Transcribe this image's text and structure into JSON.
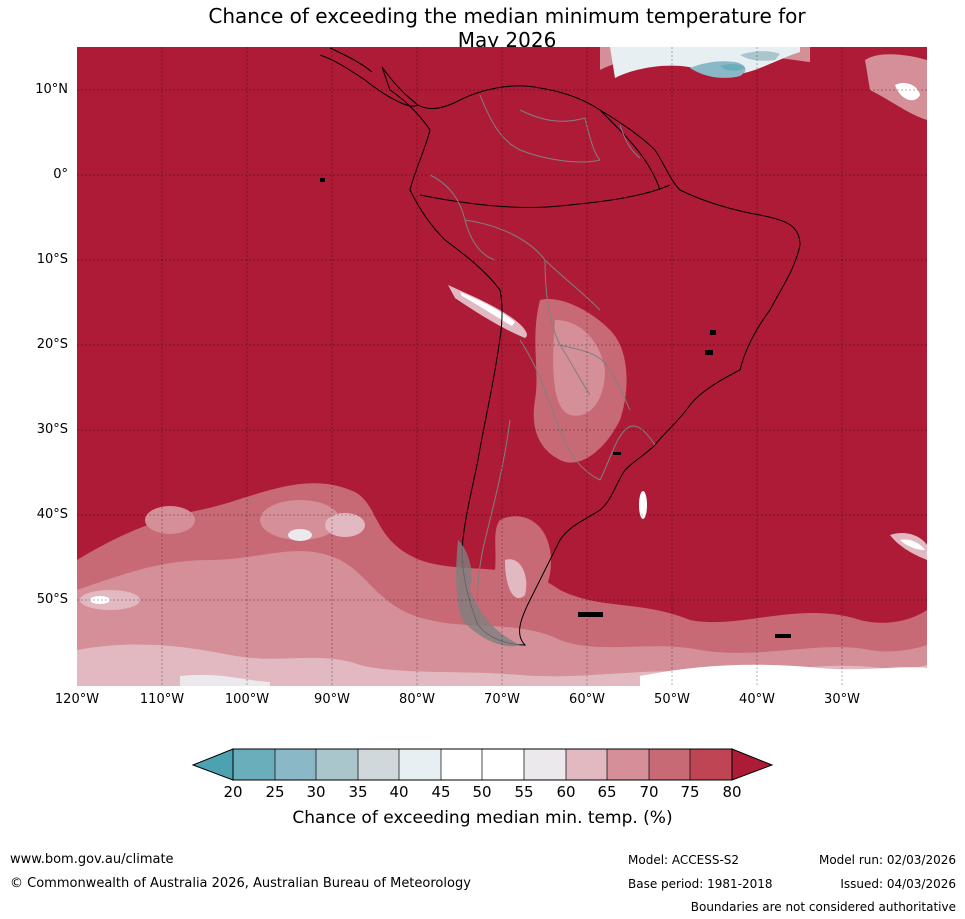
{
  "title": {
    "line1": "Chance of exceeding the median minimum temperature for",
    "line2": "May 2026"
  },
  "map": {
    "region": "South America",
    "lat_labels": [
      "10°N",
      "0°",
      "10°S",
      "20°S",
      "30°S",
      "40°S",
      "50°S"
    ],
    "lon_labels": [
      "120°W",
      "110°W",
      "100°W",
      "90°W",
      "80°W",
      "70°W",
      "60°W",
      "50°W",
      "40°W",
      "30°W"
    ],
    "colors": {
      "background": "#ae1b37",
      "coast": "#000000",
      "borders": "#808080",
      "gridlines": "#000000"
    }
  },
  "colorbar": {
    "ticks": [
      "20",
      "25",
      "30",
      "35",
      "40",
      "45",
      "50",
      "55",
      "60",
      "65",
      "70",
      "75",
      "80"
    ],
    "colors": [
      "#4ca2b0",
      "#6aaebc",
      "#8ab8c6",
      "#a9c6cd",
      "#d0d8dc",
      "#e8eff2",
      "#ffffff",
      "#ffffff",
      "#ebe9eb",
      "#e2b9c0",
      "#d48f99",
      "#c86a76",
      "#bf4454",
      "#ae1b37"
    ],
    "label": "Chance of exceeding median min. temp. (%)"
  },
  "footer": {
    "website": "www.bom.gov.au/climate",
    "copyright": "© Commonwealth of Australia 2026, Australian Bureau of Meteorology",
    "model": "Model: ACCESS-S2",
    "base_period": "Base period: 1981-2018",
    "model_run": "Model run: 02/03/2026",
    "issued": "Issued: 04/03/2026",
    "disclaimer": "Boundaries are not considered authoritative"
  }
}
